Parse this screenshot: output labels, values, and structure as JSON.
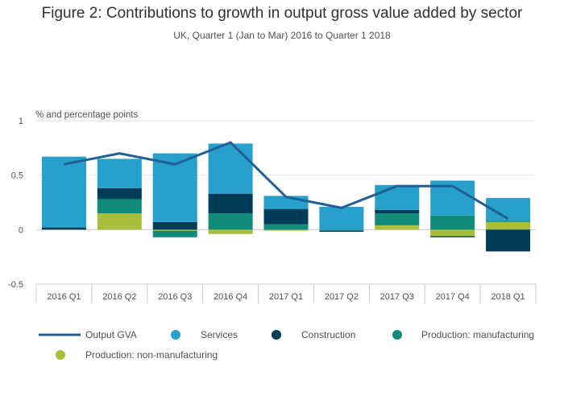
{
  "chart_data": {
    "type": "bar",
    "title": "Figure 2: Contributions to growth in output gross value added by sector",
    "subtitle": "UK, Quarter 1 (Jan to Mar) 2016 to Quarter 1 2018",
    "ylabel": "% and percentage points",
    "xlabel": "",
    "ylim": [
      -0.5,
      1
    ],
    "yticks": [
      "1",
      "0.5",
      "0",
      "-0.5"
    ],
    "ytick_values": [
      1,
      0.5,
      0,
      -0.5
    ],
    "grid": true,
    "stacked": true,
    "legend_position": "bottom",
    "categories": [
      "2016 Q1",
      "2016 Q2",
      "2016 Q3",
      "2016 Q4",
      "2017 Q1",
      "2017 Q2",
      "2017 Q3",
      "2017 Q4",
      "2018 Q1"
    ],
    "series": [
      {
        "name": "Production: non-manufacturing",
        "kind": "bar",
        "color": "#a8bd3a",
        "values": [
          0,
          0.15,
          -0.01,
          -0.04,
          -0.01,
          0,
          0.04,
          -0.06,
          0.07
        ]
      },
      {
        "name": "Production: manufacturing",
        "kind": "bar",
        "color": "#118c7b",
        "values": [
          0,
          0.13,
          -0.06,
          0.15,
          0.05,
          -0.01,
          0.11,
          0.13,
          0.01
        ]
      },
      {
        "name": "Construction",
        "kind": "bar",
        "color": "#003c57",
        "values": [
          0.02,
          0.1,
          0.07,
          0.18,
          0.14,
          -0.01,
          0.03,
          -0.01,
          -0.2
        ]
      },
      {
        "name": "Services",
        "kind": "bar",
        "color": "#27a0cc",
        "values": [
          0.65,
          0.27,
          0.63,
          0.46,
          0.12,
          0.21,
          0.23,
          0.32,
          0.21
        ]
      },
      {
        "name": "Output GVA",
        "kind": "line",
        "color": "#206095",
        "values": [
          0.6,
          0.7,
          0.6,
          0.8,
          0.3,
          0.2,
          0.4,
          0.4,
          0.1
        ]
      }
    ],
    "legend_order": [
      "Output GVA",
      "Services",
      "Construction",
      "Production: manufacturing",
      "Production: non-manufacturing"
    ]
  }
}
